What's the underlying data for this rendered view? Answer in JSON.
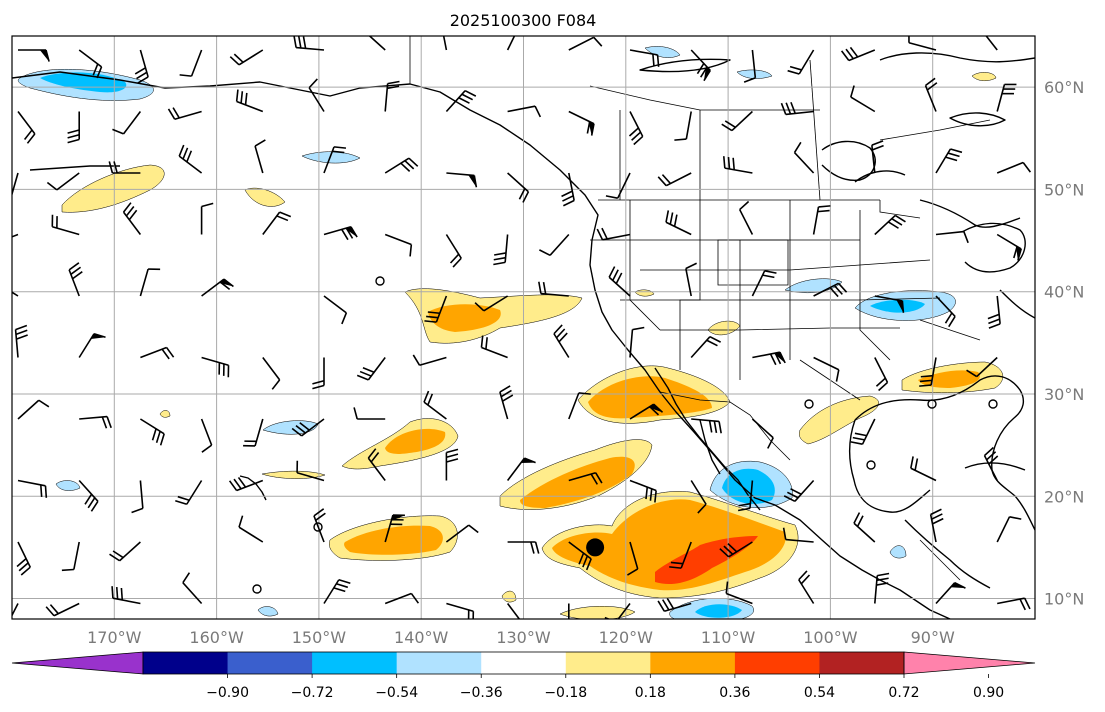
{
  "title": "2025100300 F084",
  "map": {
    "lon_range": [
      -180,
      -80
    ],
    "lat_range": [
      8,
      65
    ],
    "lon_ticks": [
      -170,
      -160,
      -150,
      -140,
      -130,
      -120,
      -110,
      -100,
      -90
    ],
    "lon_tick_labels": [
      "170°W",
      "160°W",
      "150°W",
      "140°W",
      "130°W",
      "120°W",
      "110°W",
      "100°W",
      "90°W"
    ],
    "lat_ticks": [
      10,
      20,
      30,
      40,
      50,
      60
    ],
    "lat_tick_labels": [
      "10°N",
      "20°N",
      "30°N",
      "40°N",
      "50°N",
      "60°N"
    ],
    "grid": true,
    "marker": {
      "name": "storm-center-marker",
      "lon": -123,
      "lat": 15
    }
  },
  "colorbar": {
    "tick_labels": [
      "−0.90",
      "−0.72",
      "−0.54",
      "−0.36",
      "−0.18",
      "0.18",
      "0.36",
      "0.54",
      "0.72",
      "0.90"
    ],
    "colors": [
      "#9932cc",
      "#00008b",
      "#3a5fcd",
      "#00bfff",
      "#b0e2ff",
      "#ffffff",
      "#ffec8b",
      "#ffa500",
      "#ff3e00",
      "#b22222",
      "#ff82ab"
    ],
    "extend": "both"
  },
  "colors": {
    "neg_weak": "#b0e2ff",
    "neg_mid": "#00bfff",
    "pos_weak": "#ffec8b",
    "pos_mid": "#ffa500",
    "pos_strong": "#ff3e00"
  }
}
